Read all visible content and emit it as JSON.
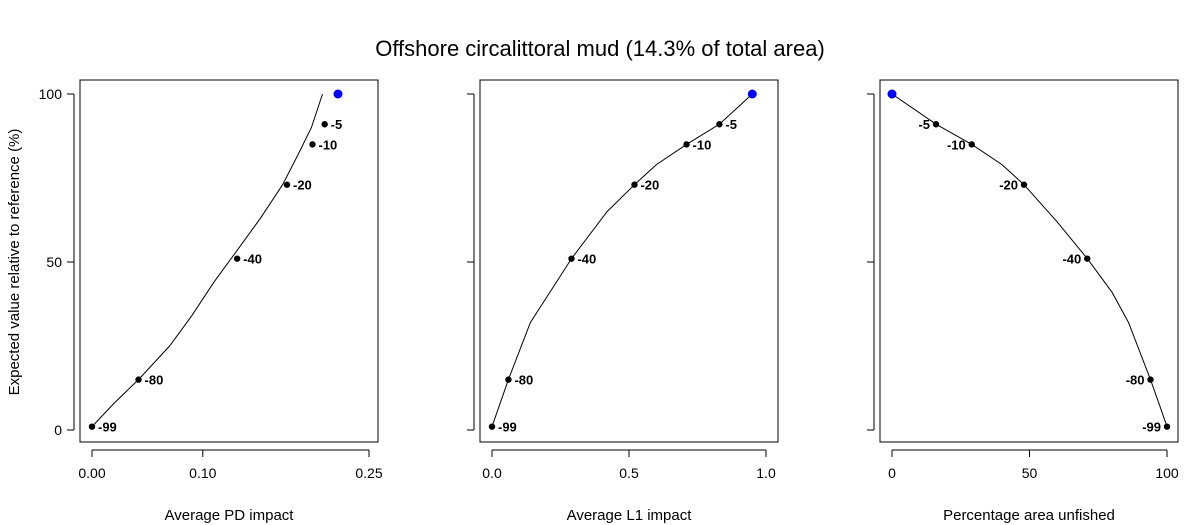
{
  "title": "Offshore circalittoral mud (14.3% of total area)",
  "ylabel": "Expected value relative to reference (%)",
  "colors": {
    "line": "#000000",
    "point": "#000000",
    "reference_point": "#0000ff"
  },
  "chart_data": [
    {
      "type": "line",
      "xlabel": "Average PD impact",
      "xlim": [
        0,
        0.25
      ],
      "ylim": [
        0,
        100
      ],
      "xticks": [
        0.0,
        0.1,
        0.25
      ],
      "xtick_labels": [
        "0.00",
        "0.10",
        "0.25"
      ],
      "yticks": [
        0,
        50,
        100
      ],
      "ytick_labels": [
        "0",
        "50",
        "100"
      ],
      "curve": {
        "x": [
          0.0,
          0.02,
          0.042,
          0.07,
          0.09,
          0.11,
          0.13,
          0.152,
          0.172,
          0.186,
          0.198,
          0.208
        ],
        "y": [
          1,
          8,
          15,
          25,
          34,
          44,
          53,
          63,
          73,
          82,
          90,
          100
        ]
      },
      "points": [
        {
          "x": 0.0,
          "y": 1,
          "label": "-99"
        },
        {
          "x": 0.042,
          "y": 15,
          "label": "-80"
        },
        {
          "x": 0.131,
          "y": 51,
          "label": "-40"
        },
        {
          "x": 0.176,
          "y": 73,
          "label": "-20"
        },
        {
          "x": 0.199,
          "y": 85,
          "label": "-10"
        },
        {
          "x": 0.21,
          "y": 91,
          "label": "-5"
        }
      ],
      "reference_point": {
        "x": 0.222,
        "y": 100
      }
    },
    {
      "type": "line",
      "xlabel": "Average L1 impact",
      "xlim": [
        0,
        1.0
      ],
      "ylim": [
        0,
        100
      ],
      "xticks": [
        0.0,
        0.5,
        1.0
      ],
      "xtick_labels": [
        "0.0",
        "0.5",
        "1.0"
      ],
      "yticks": [
        0,
        50,
        100
      ],
      "ytick_labels": [
        "",
        "",
        ""
      ],
      "curve": {
        "x": [
          0.0,
          0.03,
          0.06,
          0.14,
          0.29,
          0.42,
          0.52,
          0.6,
          0.71,
          0.83,
          0.95
        ],
        "y": [
          1,
          8,
          15,
          32,
          51,
          65,
          73,
          79,
          85,
          91,
          100
        ]
      },
      "points": [
        {
          "x": 0.0,
          "y": 1,
          "label": "-99"
        },
        {
          "x": 0.06,
          "y": 15,
          "label": "-80"
        },
        {
          "x": 0.29,
          "y": 51,
          "label": "-40"
        },
        {
          "x": 0.52,
          "y": 73,
          "label": "-20"
        },
        {
          "x": 0.71,
          "y": 85,
          "label": "-10"
        },
        {
          "x": 0.83,
          "y": 91,
          "label": "-5"
        }
      ],
      "reference_point": {
        "x": 0.95,
        "y": 100
      }
    },
    {
      "type": "line",
      "xlabel": "Percentage area unfished",
      "xlim": [
        0,
        100
      ],
      "ylim": [
        0,
        100
      ],
      "xticks": [
        0,
        50,
        100
      ],
      "xtick_labels": [
        "0",
        "50",
        "100"
      ],
      "yticks": [
        0,
        50,
        100
      ],
      "ytick_labels": [
        "",
        "",
        ""
      ],
      "curve": {
        "x": [
          0,
          16,
          29,
          40,
          48,
          60,
          71,
          80,
          86,
          94,
          97,
          100
        ],
        "y": [
          100,
          91,
          85,
          79,
          73,
          62,
          51,
          41,
          32,
          15,
          8,
          1
        ]
      },
      "points": [
        {
          "x": 16,
          "y": 91,
          "label": "-5"
        },
        {
          "x": 29,
          "y": 85,
          "label": "-10"
        },
        {
          "x": 48,
          "y": 73,
          "label": "-20"
        },
        {
          "x": 71,
          "y": 51,
          "label": "-40"
        },
        {
          "x": 94,
          "y": 15,
          "label": "-80"
        },
        {
          "x": 100,
          "y": 1,
          "label": "-99"
        }
      ],
      "reference_point": {
        "x": 0,
        "y": 100
      }
    }
  ]
}
